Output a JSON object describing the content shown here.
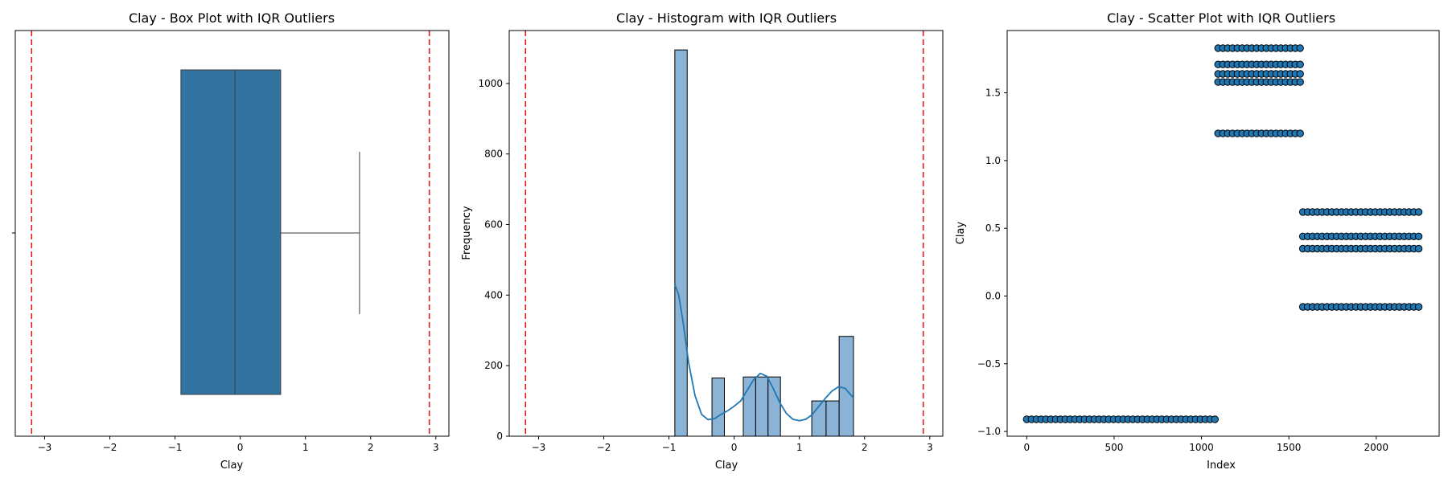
{
  "chart_data": [
    {
      "type": "box",
      "title": "Clay - Box Plot with IQR Outliers",
      "xlabel": "Clay",
      "ylabel": "",
      "xlim": [
        -3.45,
        3.2
      ],
      "xticks": [
        -3,
        -2,
        -1,
        0,
        1,
        2,
        3
      ],
      "box": {
        "whisker_low": -0.91,
        "q1": -0.91,
        "median": -0.08,
        "q3": 0.62,
        "whisker_high": 1.83
      },
      "iqr_bounds": [
        -3.2,
        2.9
      ],
      "colors": {
        "box": "#3274a1",
        "bounds": "#e41a1c"
      },
      "grid": false
    },
    {
      "type": "histogram",
      "title": "Clay - Histogram with IQR Outliers",
      "xlabel": "Clay",
      "ylabel": "Frequency",
      "xlim": [
        -3.45,
        3.2
      ],
      "ylim": [
        0,
        1150
      ],
      "xticks": [
        -3,
        -2,
        -1,
        0,
        1,
        2,
        3
      ],
      "yticks": [
        0,
        200,
        400,
        600,
        800,
        1000
      ],
      "bin_edges": [
        -0.91,
        -0.72,
        -0.53,
        -0.34,
        -0.15,
        0.04,
        0.23,
        0.42,
        0.61,
        0.8,
        0.99,
        1.18,
        1.37,
        1.56,
        1.75
      ],
      "bins": [
        {
          "x0": -0.91,
          "x1": -0.72,
          "count": 1095
        },
        {
          "x0": -0.34,
          "x1": -0.15,
          "count": 165
        },
        {
          "x0": 0.14,
          "x1": 0.33,
          "count": 168
        },
        {
          "x0": 0.33,
          "x1": 0.52,
          "count": 168
        },
        {
          "x0": 0.52,
          "x1": 0.71,
          "count": 168
        },
        {
          "x0": 1.19,
          "x1": 1.41,
          "count": 100
        },
        {
          "x0": 1.41,
          "x1": 1.61,
          "count": 100
        },
        {
          "x0": 1.61,
          "x1": 1.83,
          "count": 283
        }
      ],
      "kde": {
        "x": [
          -0.91,
          -0.85,
          -0.78,
          -0.7,
          -0.6,
          -0.5,
          -0.4,
          -0.3,
          -0.2,
          -0.1,
          0.0,
          0.1,
          0.2,
          0.3,
          0.4,
          0.5,
          0.6,
          0.7,
          0.8,
          0.9,
          1.0,
          1.1,
          1.2,
          1.3,
          1.4,
          1.5,
          1.6,
          1.7,
          1.8,
          1.83
        ],
        "y": [
          430,
          400,
          320,
          210,
          115,
          62,
          47,
          50,
          62,
          72,
          85,
          100,
          130,
          160,
          178,
          170,
          135,
          95,
          65,
          48,
          44,
          48,
          62,
          85,
          108,
          128,
          140,
          136,
          115,
          108
        ]
      },
      "iqr_bounds": [
        -3.2,
        2.9
      ],
      "colors": {
        "bars": "#8ab3d5",
        "kde": "#1f77b4",
        "bounds": "#e41a1c"
      },
      "grid": false
    },
    {
      "type": "scatter",
      "title": "Clay - Scatter Plot with IQR Outliers",
      "xlabel": "Index",
      "ylabel": "Clay",
      "xlim": [
        -112,
        2360
      ],
      "ylim": [
        -1.035,
        1.96
      ],
      "xticks": [
        0,
        500,
        1000,
        1500,
        2000
      ],
      "yticks": [
        -1.0,
        -0.5,
        0.0,
        0.5,
        1.0,
        1.5
      ],
      "ytick_labels": [
        "−1.0",
        "−0.5",
        "0.0",
        "0.5",
        "1.0",
        "1.5"
      ],
      "clusters": [
        {
          "x_start": 0,
          "x_end": 1095,
          "y": -0.91
        },
        {
          "x_start": 1095,
          "x_end": 1580,
          "y": 1.2
        },
        {
          "x_start": 1095,
          "x_end": 1580,
          "y": 1.58
        },
        {
          "x_start": 1095,
          "x_end": 1580,
          "y": 1.64
        },
        {
          "x_start": 1095,
          "x_end": 1580,
          "y": 1.71
        },
        {
          "x_start": 1095,
          "x_end": 1580,
          "y": 1.83
        },
        {
          "x_start": 1580,
          "x_end": 2250,
          "y": -0.08
        },
        {
          "x_start": 1580,
          "x_end": 2250,
          "y": 0.35
        },
        {
          "x_start": 1580,
          "x_end": 2250,
          "y": 0.44
        },
        {
          "x_start": 1580,
          "x_end": 2250,
          "y": 0.62
        }
      ],
      "colors": {
        "point_fill": "#1f77b4",
        "point_edge": "#000000"
      },
      "grid": false
    }
  ]
}
